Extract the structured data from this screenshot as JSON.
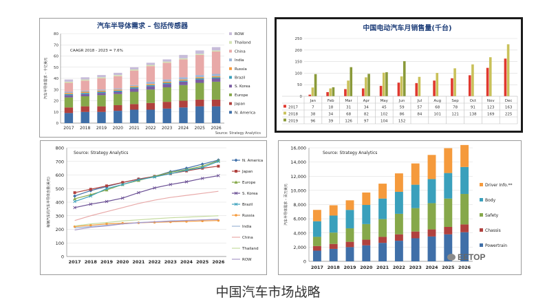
{
  "caption": "中国汽车市场战略",
  "watermark": "EETOP",
  "chart_data": [
    {
      "type": "bar",
      "stacked": true,
      "title": "汽车半导体需求 – 包括传感器",
      "annotation": "CAAGR 2018 - 2023 = 7.6%",
      "ylabel": "汽车半导体需求 – 十亿美元",
      "source": "Source: Strategy Analytics",
      "ylim": [
        0,
        80
      ],
      "yticks": [
        "0",
        "10",
        "20",
        "30",
        "40",
        "50",
        "60",
        "70",
        "80"
      ],
      "grid": true,
      "legend_position": "right",
      "categories": [
        "2017",
        "2018",
        "2019",
        "2020",
        "2021",
        "2022",
        "2023",
        "2024",
        "2025",
        "2026"
      ],
      "series": [
        {
          "name": "N. America",
          "color": "#3f6fa8",
          "values": [
            9,
            10,
            10,
            11,
            12,
            12,
            13,
            14,
            15,
            15
          ]
        },
        {
          "name": "Japan",
          "color": "#b0413e",
          "values": [
            5,
            5,
            5,
            5,
            5,
            6,
            6,
            6,
            6,
            6
          ]
        },
        {
          "name": "Europe",
          "color": "#86a84a",
          "values": [
            9,
            9,
            10,
            10,
            11,
            12,
            13,
            14,
            15,
            16
          ]
        },
        {
          "name": "S. Korea",
          "color": "#7b5ea3",
          "values": [
            2,
            2,
            2,
            2,
            3,
            3,
            3,
            3,
            3,
            3
          ]
        },
        {
          "name": "Brazil",
          "color": "#3aa0bc",
          "values": [
            1,
            1,
            1,
            1,
            1,
            1,
            1,
            1,
            1,
            1
          ]
        },
        {
          "name": "Russia",
          "color": "#f59a3c",
          "values": [
            1,
            1,
            1,
            1,
            1,
            1,
            1,
            1,
            1,
            1
          ]
        },
        {
          "name": "India",
          "color": "#9db5d6",
          "values": [
            1,
            1,
            1,
            1,
            1,
            2,
            2,
            2,
            2,
            2
          ]
        },
        {
          "name": "China",
          "color": "#e8a9a8",
          "values": [
            8,
            9,
            10,
            11,
            13,
            14,
            15,
            16,
            18,
            20
          ]
        },
        {
          "name": "Thailand",
          "color": "#d4e3b5",
          "values": [
            1,
            1,
            1,
            1,
            1,
            1,
            1,
            1,
            1,
            1
          ]
        },
        {
          "name": "ROW",
          "color": "#c7bcd9",
          "values": [
            2,
            2,
            2,
            2,
            2,
            2,
            2,
            3,
            3,
            3
          ]
        }
      ]
    },
    {
      "type": "bar",
      "title": "中国电动汽车月销售量(千台)",
      "ylim": [
        0,
        250
      ],
      "yticks": [
        "0",
        "50",
        "100",
        "150",
        "200",
        "250"
      ],
      "grid": true,
      "categories": [
        "Jan",
        "Feb",
        "Mar",
        "Apr",
        "May",
        "Jun",
        "Jul",
        "Aug",
        "Sep",
        "Oct",
        "Nov",
        "Dec"
      ],
      "series": [
        {
          "name": "2017",
          "color": "#e0392f",
          "values": [
            7,
            18,
            31,
            34,
            45,
            59,
            57,
            68,
            78,
            91,
            123,
            163
          ]
        },
        {
          "name": "2018",
          "color": "#c9c15a",
          "values": [
            38,
            34,
            68,
            82,
            102,
            86,
            84,
            101,
            121,
            138,
            169,
            225
          ]
        },
        {
          "name": "2019",
          "color": "#8a9a3a",
          "values": [
            96,
            39,
            126,
            97,
            104,
            152,
            null,
            null,
            null,
            null,
            null,
            null
          ]
        }
      ],
      "table_rows": [
        {
          "label": "2017",
          "cells": [
            "7",
            "18",
            "31",
            "34",
            "45",
            "59",
            "57",
            "68",
            "78",
            "91",
            "123",
            "163"
          ]
        },
        {
          "label": "2018",
          "cells": [
            "38",
            "34",
            "68",
            "82",
            "102",
            "86",
            "84",
            "101",
            "121",
            "138",
            "169",
            "225"
          ]
        },
        {
          "label": "2019",
          "cells": [
            "96",
            "39",
            "126",
            "97",
            "104",
            "152",
            "",
            "",
            "",
            "",
            "",
            ""
          ]
        }
      ]
    },
    {
      "type": "line",
      "source": "Source: Strategy Analytics",
      "ylabel": "每辆汽车的汽车半导体含量(美元)",
      "ylim": [
        0,
        800
      ],
      "yticks": [
        "0",
        "100",
        "200",
        "300",
        "400",
        "500",
        "600",
        "700",
        "800"
      ],
      "grid": true,
      "legend_position": "right",
      "x": [
        "2017",
        "2018",
        "2019",
        "2020",
        "2021",
        "2022",
        "2023",
        "2024",
        "2025",
        "2026"
      ],
      "series": [
        {
          "name": "N. America",
          "color": "#3f6fa8",
          "marker": "diamond",
          "values": [
            445,
            485,
            515,
            545,
            570,
            590,
            625,
            650,
            680,
            710
          ]
        },
        {
          "name": "Japan",
          "color": "#b0413e",
          "marker": "square",
          "values": [
            470,
            495,
            520,
            545,
            570,
            590,
            610,
            630,
            650,
            665
          ]
        },
        {
          "name": "Europe",
          "color": "#86a84a",
          "marker": "triangle",
          "values": [
            425,
            455,
            490,
            530,
            560,
            590,
            620,
            640,
            665,
            705
          ]
        },
        {
          "name": "S. Korea",
          "color": "#6a4f94",
          "marker": "x",
          "values": [
            360,
            385,
            405,
            430,
            470,
            505,
            530,
            550,
            575,
            595
          ]
        },
        {
          "name": "Brazil",
          "color": "#3aa0bc",
          "marker": "x",
          "values": [
            405,
            445,
            500,
            530,
            565,
            585,
            610,
            635,
            655,
            700
          ]
        },
        {
          "name": "Russia",
          "color": "#f59a3c",
          "marker": "circle",
          "values": [
            220,
            230,
            240,
            245,
            248,
            252,
            255,
            258,
            262,
            265
          ]
        },
        {
          "name": "India",
          "color": "#9db5d6",
          "marker": "none",
          "values": [
            210,
            220,
            230,
            240,
            250,
            255,
            262,
            266,
            270,
            275
          ]
        },
        {
          "name": "China",
          "color": "#e8a9a8",
          "marker": "none",
          "values": [
            265,
            300,
            330,
            360,
            390,
            415,
            435,
            450,
            465,
            480
          ]
        },
        {
          "name": "Thailand",
          "color": "#c5dba0",
          "marker": "none",
          "values": [
            225,
            240,
            250,
            262,
            270,
            278,
            285,
            290,
            295,
            300
          ]
        },
        {
          "name": "ROW",
          "color": "#a898c8",
          "marker": "none",
          "values": [
            195,
            215,
            225,
            240,
            248,
            255,
            260,
            265,
            270,
            272
          ]
        }
      ]
    },
    {
      "type": "bar",
      "stacked": true,
      "source": "Source: Strategy Analytics",
      "ylabel": "汽车半导体需求 – 百万美元",
      "ylim": [
        0,
        16000
      ],
      "yticks": [
        "0",
        "2,000",
        "4,000",
        "6,000",
        "8,000",
        "10,000",
        "12,000",
        "14,000",
        "16,000"
      ],
      "grid": true,
      "legend_position": "right",
      "categories": [
        "2017",
        "2018",
        "2019",
        "2020",
        "2021",
        "2022",
        "2023",
        "2024",
        "2025",
        "2026"
      ],
      "series": [
        {
          "name": "Powertrain",
          "color": "#3f6fa8",
          "values": [
            1500,
            1750,
            2000,
            2250,
            2600,
            2900,
            3250,
            3500,
            3800,
            4100
          ]
        },
        {
          "name": "Chassis",
          "color": "#b0413e",
          "values": [
            650,
            700,
            750,
            800,
            850,
            900,
            950,
            1000,
            1050,
            1100
          ]
        },
        {
          "name": "Safety",
          "color": "#86a84a",
          "values": [
            1300,
            1600,
            1900,
            2200,
            2500,
            2900,
            3300,
            3700,
            4000,
            4300
          ]
        },
        {
          "name": "Body",
          "color": "#3aa0bc",
          "values": [
            2200,
            2400,
            2600,
            2700,
            2900,
            3100,
            3300,
            3400,
            3600,
            3800
          ]
        },
        {
          "name": "Driver Info.**",
          "color": "#f59a3c",
          "values": [
            1600,
            1450,
            1350,
            1750,
            2100,
            2600,
            3000,
            3400,
            3500,
            3100
          ]
        }
      ]
    }
  ]
}
